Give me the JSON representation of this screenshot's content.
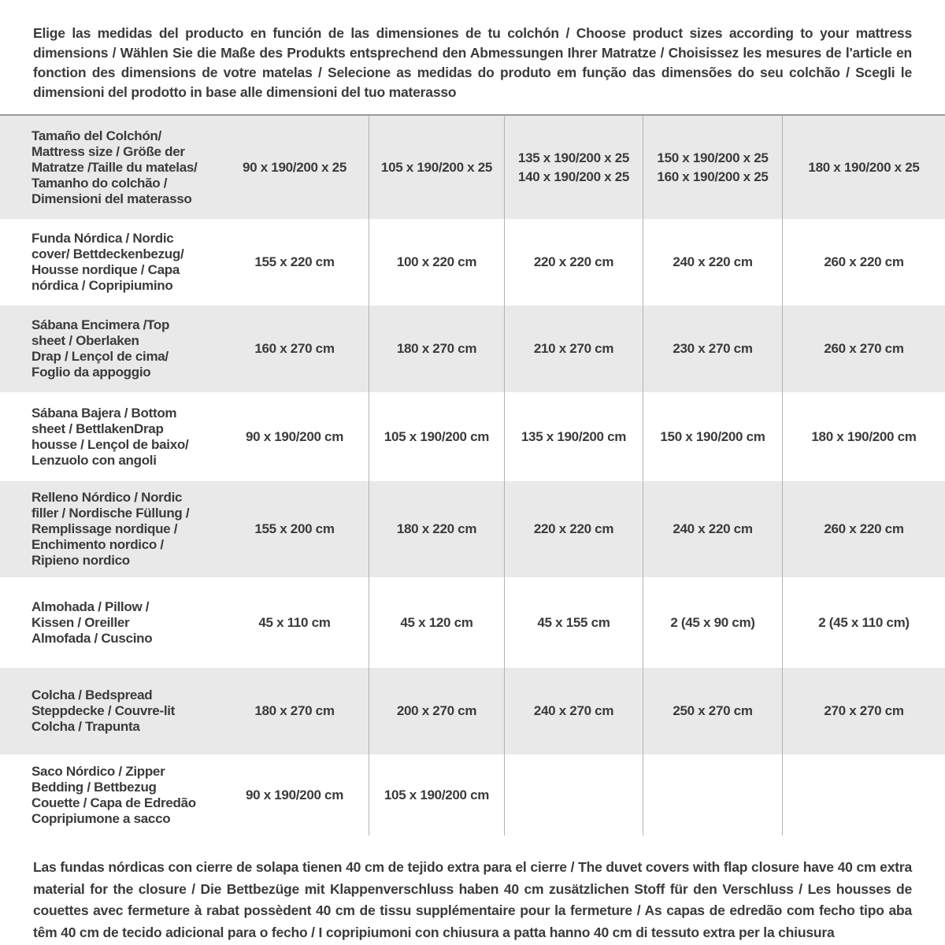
{
  "intro": {
    "text": "Elige las medidas del producto en función de las dimensiones de tu colchón / Choose product sizes according to your mattress dimensions / Wählen Sie die Maße des Produkts entsprechend den Abmessungen Ihrer Matratze / Choisissez les mesures de l'article en fonction des dimensions de votre matelas / Selecione as medidas do produto em função das dimensões do seu colchão / Scegli le dimensioni del prodotto in base alle dimensioni del tuo materasso"
  },
  "table": {
    "header": {
      "label": "Tamaño del Colchón/\nMattress size / Größe der\nMatratze /Taille du matelas/\nTamanho do colchão /\nDimensioni del materasso",
      "columns": [
        "90 x 190/200 x 25",
        "105 x 190/200 x 25",
        "135 x 190/200 x 25\n140 x 190/200 x 25",
        "150 x 190/200 x 25\n160 x 190/200 x 25",
        "180 x 190/200 x 25"
      ]
    },
    "rows": [
      {
        "label": "Funda Nórdica /  Nordic\ncover/ Bettdeckenbezug/\nHousse nordique  / Capa\nnórdica / Copripiumino",
        "values": [
          "155 x 220 cm",
          "100 x 220 cm",
          "220 x 220 cm",
          "240 x 220 cm",
          "260 x 220 cm"
        ]
      },
      {
        "label": "Sábana Encimera /Top\nsheet / Oberlaken\nDrap / Lençol de cima/\nFoglio da appoggio",
        "values": [
          "160 x 270 cm",
          "180 x 270 cm",
          "210 x 270 cm",
          "230 x 270 cm",
          "260 x 270 cm"
        ]
      },
      {
        "label": "Sábana Bajera / Bottom\nsheet / BettlakenDrap\nhousse / Lençol de baixo/\nLenzuolo con angoli",
        "values": [
          "90 x 190/200 cm",
          "105 x 190/200 cm",
          "135 x 190/200 cm",
          "150 x 190/200 cm",
          "180 x 190/200 cm"
        ]
      },
      {
        "label": "Relleno Nórdico / Nordic\nfiller / Nordische Füllung /\nRemplissage nordique /\nEnchimento nordico /\nRipieno nordico",
        "values": [
          "155 x 200 cm",
          "180 x 220 cm",
          "220 x 220 cm",
          "240 x 220 cm",
          "260 x 220 cm"
        ]
      },
      {
        "label": "Almohada  / Pillow /\nKissen / Oreiller\nAlmofada / Cuscino",
        "values": [
          "45 x 110 cm",
          "45 x 120 cm",
          "45 x 155 cm",
          "2 (45 x 90 cm)",
          "2 (45 x 110 cm)"
        ]
      },
      {
        "label": "Colcha / Bedspread\nSteppdecke / Couvre-lit\nColcha / Trapunta",
        "values": [
          "180 x 270 cm",
          "200 x 270 cm",
          "240 x 270 cm",
          "250 x 270 cm",
          "270 x 270 cm"
        ]
      },
      {
        "label": "Saco Nórdico / Zipper\nBedding / Bettbezug\nCouette  / Capa de Edredão\nCopripiumone a sacco",
        "values": [
          "90 x 190/200 cm",
          "105 x 190/200 cm",
          "",
          "",
          ""
        ]
      }
    ]
  },
  "footnote": {
    "text": "Las fundas nórdicas con cierre de solapa tienen 40 cm de tejido extra para el cierre / The duvet covers with flap closure have 40 cm extra material for the closure / Die Bettbezüge mit Klappenverschluss haben 40 cm zusätzlichen Stoff für den Verschluss / Les housses de couettes avec fermeture à rabat possèdent 40 cm de tissu supplémentaire pour la fermeture / As capas de edredão com fecho tipo aba têm 40 cm de tecido adicional para o fecho / I copripiumoni con chiusura a patta hanno 40 cm di tessuto extra per la chiusura"
  },
  "colors": {
    "row_alt_bg": "#e9e9e9",
    "separator": "#b3b3b3",
    "text": "#3b3b3b"
  }
}
